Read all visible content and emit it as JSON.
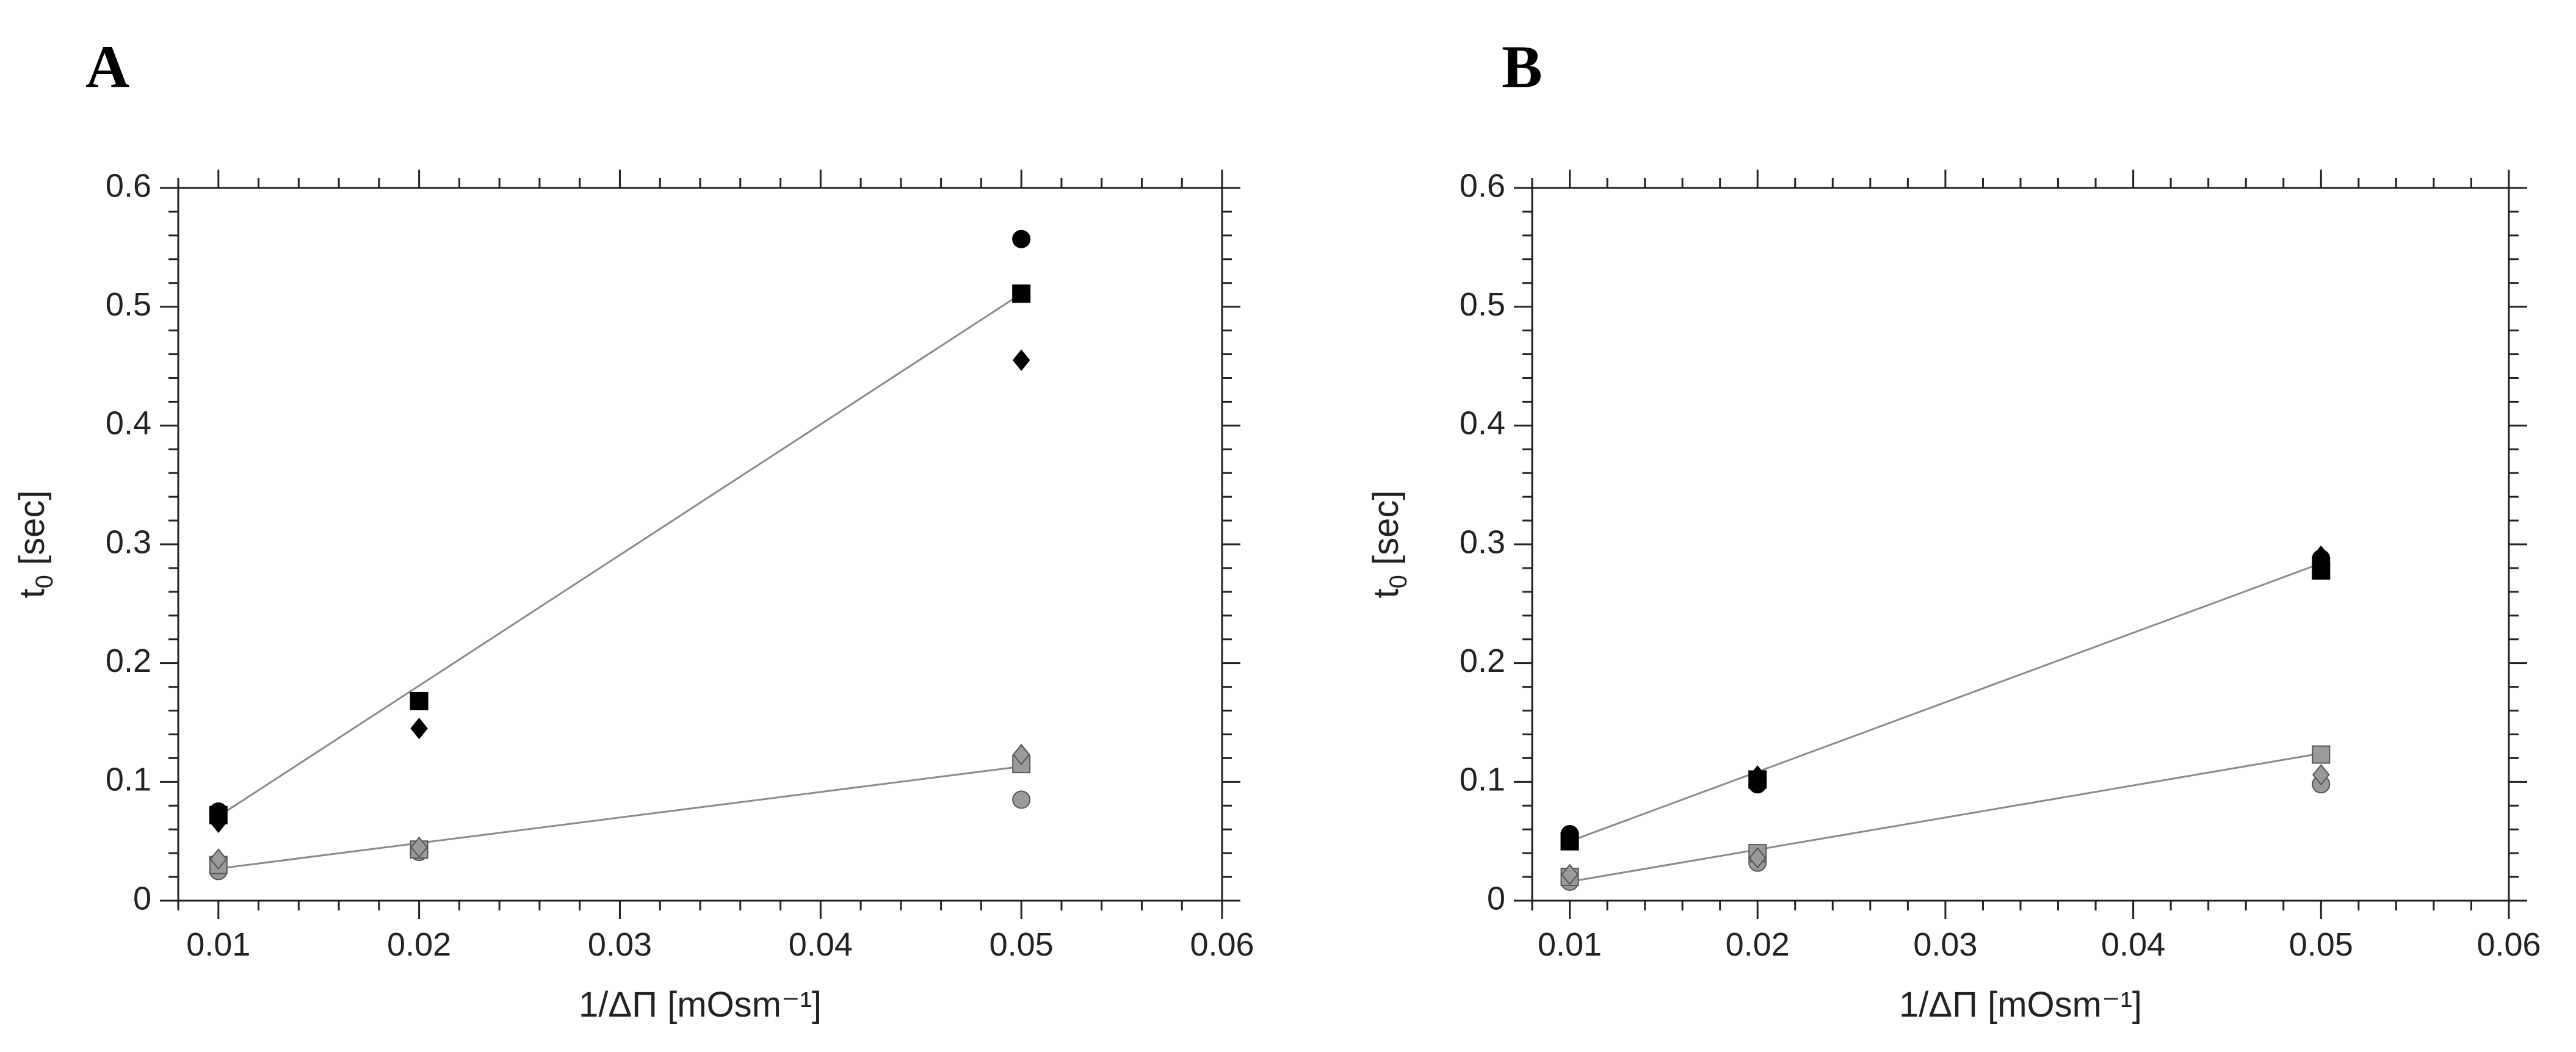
{
  "chart_data": [
    {
      "type": "scatter",
      "panel": "A",
      "xlabel": "1/ΔΠ [mOsm⁻¹]",
      "ylabel_main": "t",
      "ylabel_sub": "0",
      "ylabel_unit": " [sec]",
      "xlim": [
        0.008,
        0.06
      ],
      "ylim": [
        0,
        0.6
      ],
      "x_ticks": [
        0.01,
        0.02,
        0.03,
        0.04,
        0.05,
        0.06
      ],
      "x_tick_labels": [
        "0.01",
        "0.02",
        "0.03",
        "0.04",
        "0.05",
        "0.06"
      ],
      "y_ticks": [
        0,
        0.1,
        0.2,
        0.3,
        0.4,
        0.5,
        0.6
      ],
      "y_tick_labels": [
        "0",
        "0.1",
        "0.2",
        "0.3",
        "0.4",
        "0.5",
        "0.6"
      ],
      "series": [
        {
          "name": "black circle",
          "marker": "circle",
          "color": "#000000",
          "x": [
            0.01,
            0.02,
            0.05
          ],
          "y": [
            0.075,
            0.168,
            0.557
          ]
        },
        {
          "name": "black square",
          "marker": "square",
          "color": "#000000",
          "x": [
            0.01,
            0.02,
            0.05
          ],
          "y": [
            0.072,
            0.168,
            0.511
          ]
        },
        {
          "name": "black diamond",
          "marker": "diamond",
          "color": "#000000",
          "x": [
            0.01,
            0.02,
            0.05
          ],
          "y": [
            0.066,
            0.145,
            0.455
          ]
        },
        {
          "name": "gray circle",
          "marker": "circle",
          "color": "#9a9a9a",
          "x": [
            0.01,
            0.02,
            0.05
          ],
          "y": [
            0.025,
            0.041,
            0.085
          ]
        },
        {
          "name": "gray square",
          "marker": "square",
          "color": "#9a9a9a",
          "x": [
            0.01,
            0.02,
            0.05
          ],
          "y": [
            0.03,
            0.043,
            0.115
          ]
        },
        {
          "name": "gray diamond",
          "marker": "diamond",
          "color": "#9a9a9a",
          "x": [
            0.01,
            0.02,
            0.05
          ],
          "y": [
            0.035,
            0.045,
            0.123
          ]
        }
      ],
      "fits": [
        {
          "name": "black fit",
          "x": [
            0.01,
            0.05
          ],
          "y": [
            0.071,
            0.511
          ]
        },
        {
          "name": "gray fit",
          "x": [
            0.01,
            0.05
          ],
          "y": [
            0.027,
            0.113
          ]
        }
      ]
    },
    {
      "type": "scatter",
      "panel": "B",
      "xlabel": "1/ΔΠ [mOsm⁻¹]",
      "ylabel_main": "t",
      "ylabel_sub": "0",
      "ylabel_unit": " [sec]",
      "xlim": [
        0.008,
        0.06
      ],
      "ylim": [
        0,
        0.6
      ],
      "x_ticks": [
        0.01,
        0.02,
        0.03,
        0.04,
        0.05,
        0.06
      ],
      "x_tick_labels": [
        "0.01",
        "0.02",
        "0.03",
        "0.04",
        "0.05",
        "0.06"
      ],
      "y_ticks": [
        0,
        0.1,
        0.2,
        0.3,
        0.4,
        0.5,
        0.6
      ],
      "y_tick_labels": [
        "0",
        "0.1",
        "0.2",
        "0.3",
        "0.4",
        "0.5",
        "0.6"
      ],
      "series": [
        {
          "name": "black circle",
          "marker": "circle",
          "color": "#000000",
          "x": [
            0.01,
            0.02,
            0.05
          ],
          "y": [
            0.056,
            0.098,
            0.288
          ]
        },
        {
          "name": "black square",
          "marker": "square",
          "color": "#000000",
          "x": [
            0.01,
            0.02,
            0.05
          ],
          "y": [
            0.05,
            0.102,
            0.278
          ]
        },
        {
          "name": "black diamond",
          "marker": "diamond",
          "color": "#000000",
          "x": [
            0.01,
            0.02,
            0.05
          ],
          "y": [
            0.053,
            0.105,
            0.29
          ]
        },
        {
          "name": "gray circle",
          "marker": "circle",
          "color": "#9a9a9a",
          "x": [
            0.01,
            0.02,
            0.05
          ],
          "y": [
            0.016,
            0.032,
            0.098
          ]
        },
        {
          "name": "gray square",
          "marker": "square",
          "color": "#9a9a9a",
          "x": [
            0.01,
            0.02,
            0.05
          ],
          "y": [
            0.02,
            0.04,
            0.123
          ]
        },
        {
          "name": "gray diamond",
          "marker": "diamond",
          "color": "#9a9a9a",
          "x": [
            0.01,
            0.02,
            0.05
          ],
          "y": [
            0.022,
            0.036,
            0.106
          ]
        }
      ],
      "fits": [
        {
          "name": "black fit",
          "x": [
            0.01,
            0.05
          ],
          "y": [
            0.05,
            0.284
          ]
        },
        {
          "name": "gray fit",
          "x": [
            0.01,
            0.05
          ],
          "y": [
            0.016,
            0.124
          ]
        }
      ]
    }
  ]
}
